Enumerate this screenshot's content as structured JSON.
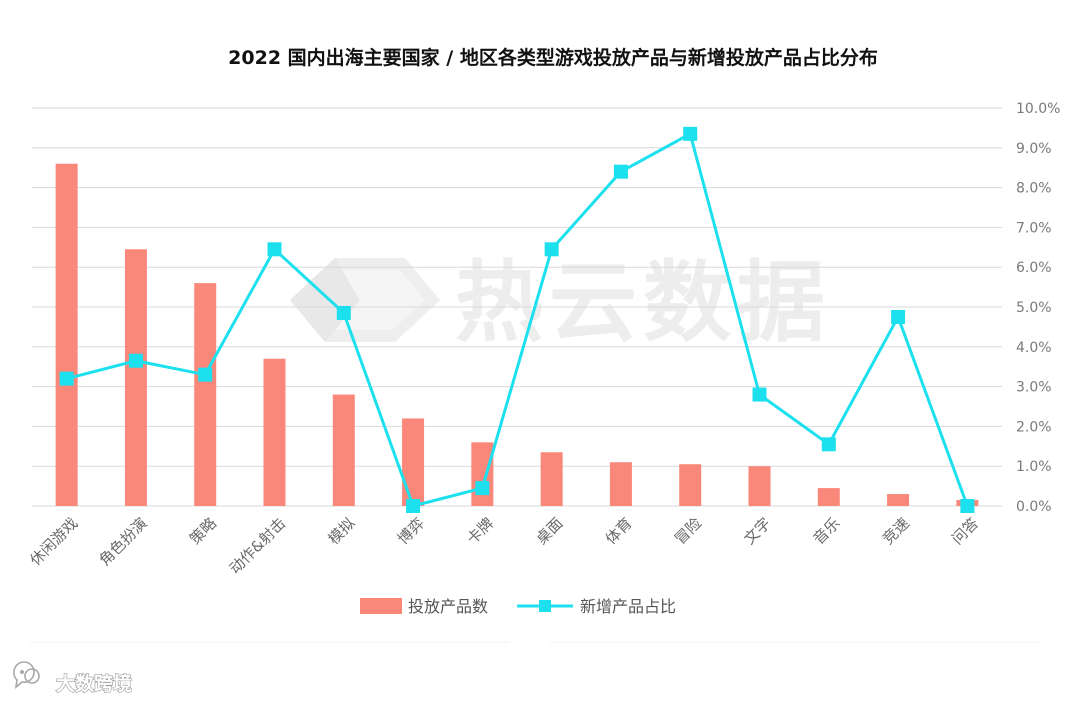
{
  "chart_data": {
    "type": "bar+line",
    "title": "2022 国内出海主要国家 / 地区各类型游戏投放产品与新增投放产品占比分布",
    "categories": [
      "休闲游戏",
      "角色扮演",
      "策略",
      "动作&射击",
      "模拟",
      "博弈",
      "卡牌",
      "桌面",
      "体育",
      "冒险",
      "文字",
      "音乐",
      "竞速",
      "问答"
    ],
    "series": [
      {
        "name": "投放产品数",
        "type": "bar",
        "color": "#f9887a",
        "values": [
          8.6,
          6.45,
          5.6,
          3.7,
          2.8,
          2.2,
          1.6,
          1.35,
          1.1,
          1.05,
          1.0,
          0.45,
          0.3,
          0.15
        ]
      },
      {
        "name": "新增产品占比",
        "type": "line",
        "color": "#1ce0ee",
        "unit": "%",
        "values": [
          3.2,
          3.65,
          3.3,
          6.45,
          4.85,
          0.0,
          0.45,
          6.45,
          8.4,
          9.35,
          2.8,
          1.55,
          4.75,
          0.0
        ]
      }
    ],
    "y_right": {
      "ylim": [
        0,
        10
      ],
      "ticks": [
        "0.0%",
        "1.0%",
        "2.0%",
        "3.0%",
        "4.0%",
        "5.0%",
        "6.0%",
        "7.0%",
        "8.0%",
        "9.0%",
        "10.0%"
      ]
    },
    "grid": true,
    "legend_position": "bottom"
  },
  "watermark": {
    "text": "热云数据"
  },
  "brand": {
    "text": "大数跨境",
    "icon": "chat-bubble-logo-icon"
  }
}
